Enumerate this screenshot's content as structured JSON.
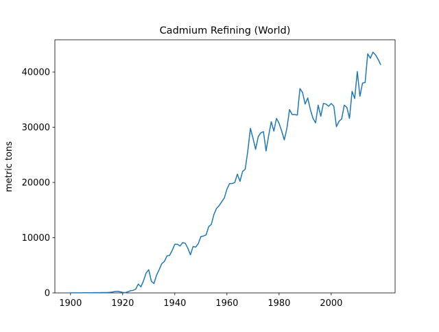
{
  "chart_data": {
    "type": "line",
    "title": "Cadmium Refining (World)",
    "y_label": "metric tons",
    "x": [
      1900,
      1901,
      1902,
      1903,
      1904,
      1905,
      1906,
      1907,
      1908,
      1909,
      1910,
      1911,
      1912,
      1913,
      1914,
      1915,
      1916,
      1917,
      1918,
      1919,
      1920,
      1921,
      1922,
      1923,
      1924,
      1925,
      1926,
      1927,
      1928,
      1929,
      1930,
      1931,
      1932,
      1933,
      1934,
      1935,
      1936,
      1937,
      1938,
      1939,
      1940,
      1941,
      1942,
      1943,
      1944,
      1945,
      1946,
      1947,
      1948,
      1949,
      1950,
      1951,
      1952,
      1953,
      1954,
      1955,
      1956,
      1957,
      1958,
      1959,
      1960,
      1961,
      1962,
      1963,
      1964,
      1965,
      1966,
      1967,
      1968,
      1969,
      1970,
      1971,
      1972,
      1973,
      1974,
      1975,
      1976,
      1977,
      1978,
      1979,
      1980,
      1981,
      1982,
      1983,
      1984,
      1985,
      1986,
      1987,
      1988,
      1989,
      1990,
      1991,
      1992,
      1993,
      1994,
      1995,
      1996,
      1997,
      1998,
      1999,
      2000,
      2001,
      2002,
      2003,
      2004,
      2005,
      2006,
      2007,
      2008,
      2009,
      2010,
      2011,
      2012,
      2013,
      2014,
      2015,
      2016,
      2017,
      2018,
      2019
    ],
    "series": [
      {
        "name": "World",
        "color": "#1f77b4",
        "values": [
          10,
          10,
          15,
          20,
          20,
          25,
          30,
          30,
          35,
          40,
          45,
          50,
          55,
          60,
          70,
          90,
          150,
          250,
          300,
          200,
          100,
          50,
          200,
          400,
          450,
          700,
          1600,
          1100,
          2200,
          3600,
          4200,
          2100,
          1700,
          3200,
          4200,
          5300,
          5700,
          6700,
          6800,
          7700,
          8800,
          8800,
          8500,
          9100,
          9000,
          8100,
          6900,
          8400,
          8300,
          8900,
          10200,
          10300,
          10500,
          12000,
          12400,
          14200,
          15300,
          15800,
          16500,
          17200,
          18800,
          19800,
          19800,
          20000,
          21500,
          20200,
          22000,
          22400,
          25700,
          29800,
          28000,
          26000,
          28300,
          29000,
          29200,
          25700,
          28500,
          31000,
          29300,
          31600,
          30700,
          29300,
          27700,
          29800,
          33200,
          32300,
          32300,
          32200,
          37000,
          36300,
          34200,
          35300,
          33200,
          31600,
          30800,
          34000,
          32000,
          34300,
          34200,
          33800,
          34300,
          33800,
          30100,
          31100,
          31500,
          34000,
          33600,
          31600,
          36500,
          35200,
          40100,
          35600,
          38000,
          38100,
          43300,
          42500,
          43600,
          43100,
          42300,
          41300
        ]
      }
    ],
    "xlim": [
      1894,
      2024.5
    ],
    "xticks": [
      1900,
      1920,
      1940,
      1960,
      1980,
      2000
    ],
    "ylim": [
      0,
      45840
    ],
    "yticks": [
      0,
      10000,
      20000,
      30000,
      40000
    ]
  }
}
